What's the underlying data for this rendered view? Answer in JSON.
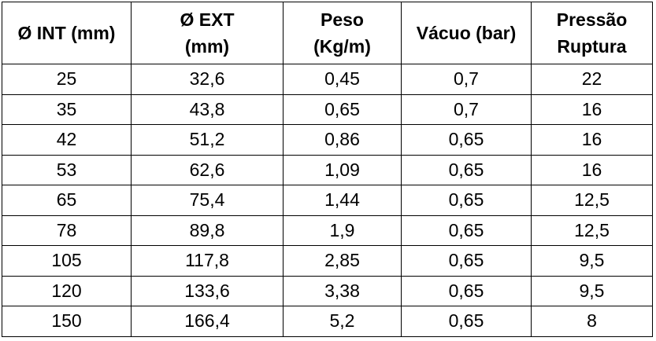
{
  "table": {
    "headers": [
      [
        "Ø INT (mm)"
      ],
      [
        "Ø EXT",
        "(mm)"
      ],
      [
        "Peso",
        "(Kg/m)"
      ],
      [
        "Vácuo (bar)"
      ],
      [
        "Pressão",
        "Ruptura"
      ]
    ],
    "rows": [
      [
        "25",
        "32,6",
        "0,45",
        "0,7",
        "22"
      ],
      [
        "35",
        "43,8",
        "0,65",
        "0,7",
        "16"
      ],
      [
        "42",
        "51,2",
        "0,86",
        "0,65",
        "16"
      ],
      [
        "53",
        "62,6",
        "1,09",
        "0,65",
        "16"
      ],
      [
        "65",
        "75,4",
        "1,44",
        "0,65",
        "12,5"
      ],
      [
        "78",
        "89,8",
        "1,9",
        "0,65",
        "12,5"
      ],
      [
        "105",
        "117,8",
        "2,85",
        "0,65",
        "9,5"
      ],
      [
        "120",
        "133,6",
        "3,38",
        "0,65",
        "9,5"
      ],
      [
        "150",
        "166,4",
        "5,2",
        "0,65",
        "8"
      ]
    ]
  }
}
